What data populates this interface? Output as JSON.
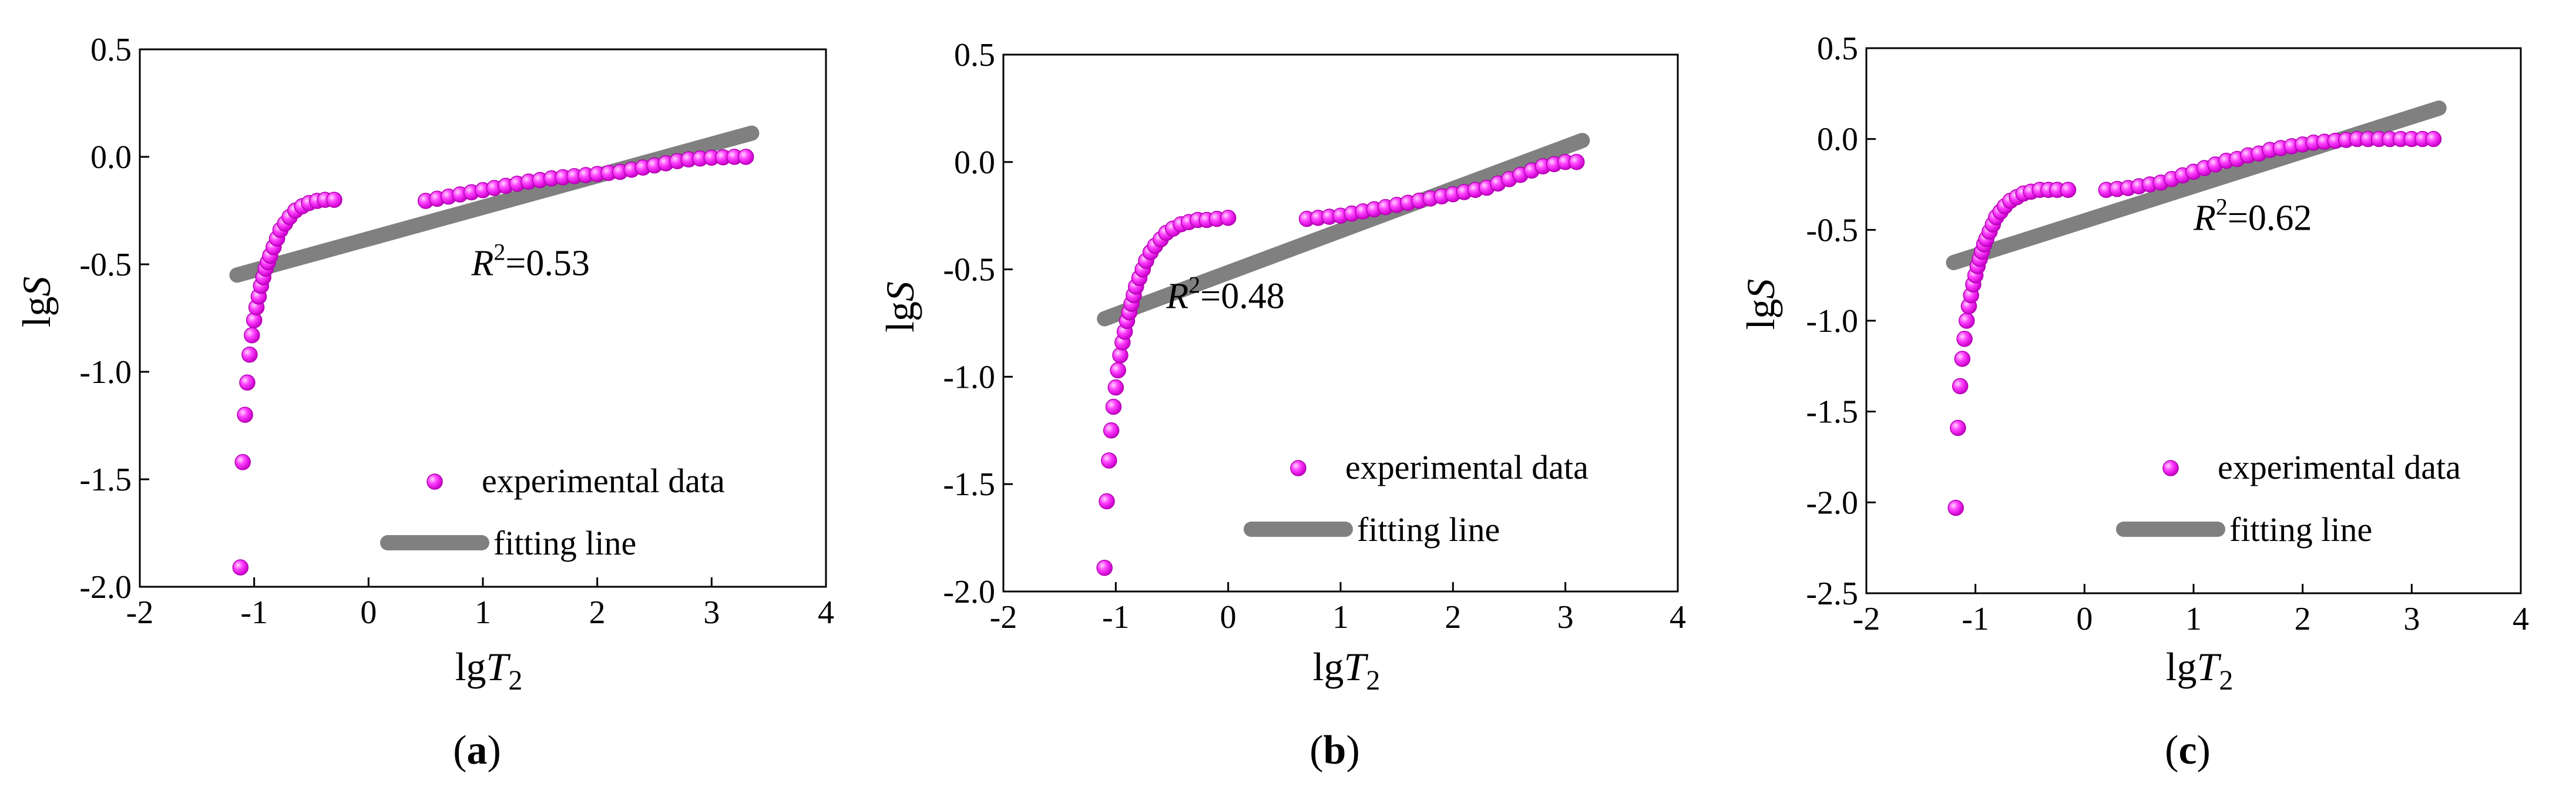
{
  "chart_data": [
    {
      "type": "scatter",
      "panel": "a",
      "caption": {
        "open": "(",
        "letter": "a",
        "close": ")"
      },
      "xlabel": {
        "base": "lg",
        "var": "T",
        "sub": "2"
      },
      "ylabel": {
        "base": "lg",
        "var": "S"
      },
      "xlim": [
        -2,
        4
      ],
      "ylim": [
        -2.0,
        0.5
      ],
      "xticks": [
        -2,
        -1,
        0,
        1,
        2,
        3,
        4
      ],
      "xtick_labels": [
        "-2",
        "-1",
        "0",
        "1",
        "2",
        "3",
        "4"
      ],
      "yticks": [
        0.5,
        0.0,
        -0.5,
        -1.0,
        -1.5,
        -2.0
      ],
      "ytick_labels": [
        "0.5",
        "0.0",
        "-0.5",
        "-1.0",
        "-1.5",
        "-2.0"
      ],
      "r2": {
        "sym": "R",
        "sup": "2",
        "val": "=0.53",
        "x": 0.9,
        "y": -0.55
      },
      "legend": {
        "scatter": "experimental data",
        "line": "fitting line"
      },
      "series": [
        {
          "name": "fitting line",
          "kind": "line",
          "x": [
            -1.15,
            3.35
          ],
          "y": [
            -0.55,
            0.11
          ]
        },
        {
          "name": "experimental data",
          "kind": "scatter",
          "x": [
            -1.12,
            -1.1,
            -1.08,
            -1.06,
            -1.04,
            -1.02,
            -1.0,
            -0.98,
            -0.96,
            -0.94,
            -0.92,
            -0.9,
            -0.88,
            -0.86,
            -0.83,
            -0.8,
            -0.77,
            -0.73,
            -0.69,
            -0.64,
            -0.58,
            -0.52,
            -0.45,
            -0.38,
            -0.3,
            0.5,
            0.6,
            0.7,
            0.8,
            0.9,
            1.0,
            1.1,
            1.2,
            1.3,
            1.4,
            1.5,
            1.6,
            1.7,
            1.8,
            1.9,
            2.0,
            2.1,
            2.2,
            2.3,
            2.4,
            2.5,
            2.6,
            2.7,
            2.8,
            2.9,
            3.0,
            3.1,
            3.2,
            3.3
          ],
          "y": [
            -1.91,
            -1.42,
            -1.2,
            -1.05,
            -0.92,
            -0.83,
            -0.76,
            -0.7,
            -0.65,
            -0.6,
            -0.56,
            -0.52,
            -0.49,
            -0.46,
            -0.42,
            -0.38,
            -0.34,
            -0.31,
            -0.28,
            -0.25,
            -0.23,
            -0.215,
            -0.205,
            -0.2,
            -0.2,
            -0.205,
            -0.195,
            -0.185,
            -0.175,
            -0.165,
            -0.155,
            -0.145,
            -0.135,
            -0.125,
            -0.115,
            -0.108,
            -0.1,
            -0.095,
            -0.09,
            -0.085,
            -0.08,
            -0.075,
            -0.07,
            -0.06,
            -0.05,
            -0.04,
            -0.03,
            -0.02,
            -0.012,
            -0.008,
            -0.004,
            -0.002,
            0.0,
            0.0
          ]
        }
      ]
    },
    {
      "type": "scatter",
      "panel": "b",
      "caption": {
        "open": "(",
        "letter": "b",
        "close": ")"
      },
      "xlabel": {
        "base": "lg",
        "var": "T",
        "sub": "2"
      },
      "ylabel": {
        "base": "lg",
        "var": "S"
      },
      "xlim": [
        -2,
        4
      ],
      "ylim": [
        -2.0,
        0.5
      ],
      "xticks": [
        -2,
        -1,
        0,
        1,
        2,
        3,
        4
      ],
      "xtick_labels": [
        "-2",
        "-1",
        "0",
        "1",
        "2",
        "3",
        "4"
      ],
      "yticks": [
        0.5,
        0.0,
        -0.5,
        -1.0,
        -1.5,
        -2.0
      ],
      "ytick_labels": [
        "0.5",
        "0.0",
        "-0.5",
        "-1.0",
        "-1.5",
        "-2.0"
      ],
      "r2": {
        "sym": "R",
        "sup": "2",
        "val": "=0.48",
        "x": -0.55,
        "y": -0.68
      },
      "legend": {
        "scatter": "experimental data",
        "line": "fitting line"
      },
      "series": [
        {
          "name": "fitting line",
          "kind": "line",
          "x": [
            -1.1,
            3.15
          ],
          "y": [
            -0.73,
            0.1
          ]
        },
        {
          "name": "experimental data",
          "kind": "scatter",
          "x": [
            -1.1,
            -1.08,
            -1.06,
            -1.04,
            -1.02,
            -1.0,
            -0.98,
            -0.96,
            -0.94,
            -0.92,
            -0.9,
            -0.88,
            -0.86,
            -0.84,
            -0.82,
            -0.79,
            -0.76,
            -0.73,
            -0.69,
            -0.65,
            -0.6,
            -0.55,
            -0.49,
            -0.42,
            -0.35,
            -0.27,
            -0.19,
            -0.1,
            0.0,
            0.7,
            0.8,
            0.9,
            1.0,
            1.1,
            1.2,
            1.3,
            1.4,
            1.5,
            1.6,
            1.7,
            1.8,
            1.9,
            2.0,
            2.1,
            2.2,
            2.3,
            2.4,
            2.5,
            2.6,
            2.7,
            2.8,
            2.9,
            3.0,
            3.1
          ],
          "y": [
            -1.89,
            -1.58,
            -1.39,
            -1.25,
            -1.14,
            -1.05,
            -0.97,
            -0.9,
            -0.84,
            -0.79,
            -0.74,
            -0.7,
            -0.66,
            -0.62,
            -0.58,
            -0.54,
            -0.5,
            -0.46,
            -0.42,
            -0.39,
            -0.36,
            -0.33,
            -0.31,
            -0.29,
            -0.28,
            -0.27,
            -0.27,
            -0.265,
            -0.26,
            -0.265,
            -0.26,
            -0.255,
            -0.25,
            -0.24,
            -0.23,
            -0.22,
            -0.21,
            -0.2,
            -0.19,
            -0.18,
            -0.17,
            -0.16,
            -0.15,
            -0.14,
            -0.13,
            -0.12,
            -0.1,
            -0.08,
            -0.06,
            -0.04,
            -0.02,
            -0.01,
            0.0,
            0.0
          ]
        }
      ]
    },
    {
      "type": "scatter",
      "panel": "c",
      "caption": {
        "open": "(",
        "letter": "c",
        "close": ")"
      },
      "xlabel": {
        "base": "lg",
        "var": "T",
        "sub": "2"
      },
      "ylabel": {
        "base": "lg",
        "var": "S"
      },
      "xlim": [
        -2,
        4
      ],
      "ylim": [
        -2.5,
        0.5
      ],
      "xticks": [
        -2,
        -1,
        0,
        1,
        2,
        3,
        4
      ],
      "xtick_labels": [
        "-2",
        "-1",
        "0",
        "1",
        "2",
        "3",
        "4"
      ],
      "yticks": [
        0.5,
        0.0,
        -0.5,
        -1.0,
        -1.5,
        -2.0,
        -2.5
      ],
      "ytick_labels": [
        "0.5",
        "0.0",
        "-0.5",
        "-1.0",
        "-1.5",
        "-2.0",
        "-2.5"
      ],
      "r2": {
        "sym": "R",
        "sup": "2",
        "val": "=0.62",
        "x": 1.0,
        "y": -0.5
      },
      "legend": {
        "scatter": "experimental data",
        "line": "fitting line"
      },
      "series": [
        {
          "name": "fitting line",
          "kind": "line",
          "x": [
            -1.2,
            3.25
          ],
          "y": [
            -0.68,
            0.17
          ]
        },
        {
          "name": "experimental data",
          "kind": "scatter",
          "x": [
            -1.18,
            -1.16,
            -1.14,
            -1.12,
            -1.1,
            -1.08,
            -1.06,
            -1.04,
            -1.02,
            -1.0,
            -0.98,
            -0.96,
            -0.94,
            -0.92,
            -0.9,
            -0.87,
            -0.84,
            -0.81,
            -0.77,
            -0.73,
            -0.68,
            -0.62,
            -0.56,
            -0.49,
            -0.41,
            -0.33,
            -0.25,
            -0.15,
            0.2,
            0.3,
            0.4,
            0.5,
            0.6,
            0.7,
            0.8,
            0.9,
            1.0,
            1.1,
            1.2,
            1.3,
            1.4,
            1.5,
            1.6,
            1.7,
            1.8,
            1.9,
            2.0,
            2.1,
            2.2,
            2.3,
            2.4,
            2.5,
            2.6,
            2.7,
            2.8,
            2.9,
            3.0,
            3.1,
            3.2
          ],
          "y": [
            -2.03,
            -1.59,
            -1.36,
            -1.21,
            -1.1,
            -1.0,
            -0.92,
            -0.86,
            -0.8,
            -0.75,
            -0.7,
            -0.66,
            -0.62,
            -0.58,
            -0.55,
            -0.51,
            -0.47,
            -0.43,
            -0.4,
            -0.37,
            -0.34,
            -0.32,
            -0.3,
            -0.29,
            -0.28,
            -0.28,
            -0.28,
            -0.28,
            -0.28,
            -0.275,
            -0.27,
            -0.26,
            -0.25,
            -0.24,
            -0.22,
            -0.2,
            -0.18,
            -0.16,
            -0.14,
            -0.12,
            -0.11,
            -0.09,
            -0.08,
            -0.06,
            -0.05,
            -0.04,
            -0.03,
            -0.02,
            -0.015,
            -0.01,
            -0.005,
            0.0,
            0.0,
            0.0,
            0.0,
            0.0,
            0.0,
            0.0,
            0.0
          ]
        }
      ]
    }
  ]
}
